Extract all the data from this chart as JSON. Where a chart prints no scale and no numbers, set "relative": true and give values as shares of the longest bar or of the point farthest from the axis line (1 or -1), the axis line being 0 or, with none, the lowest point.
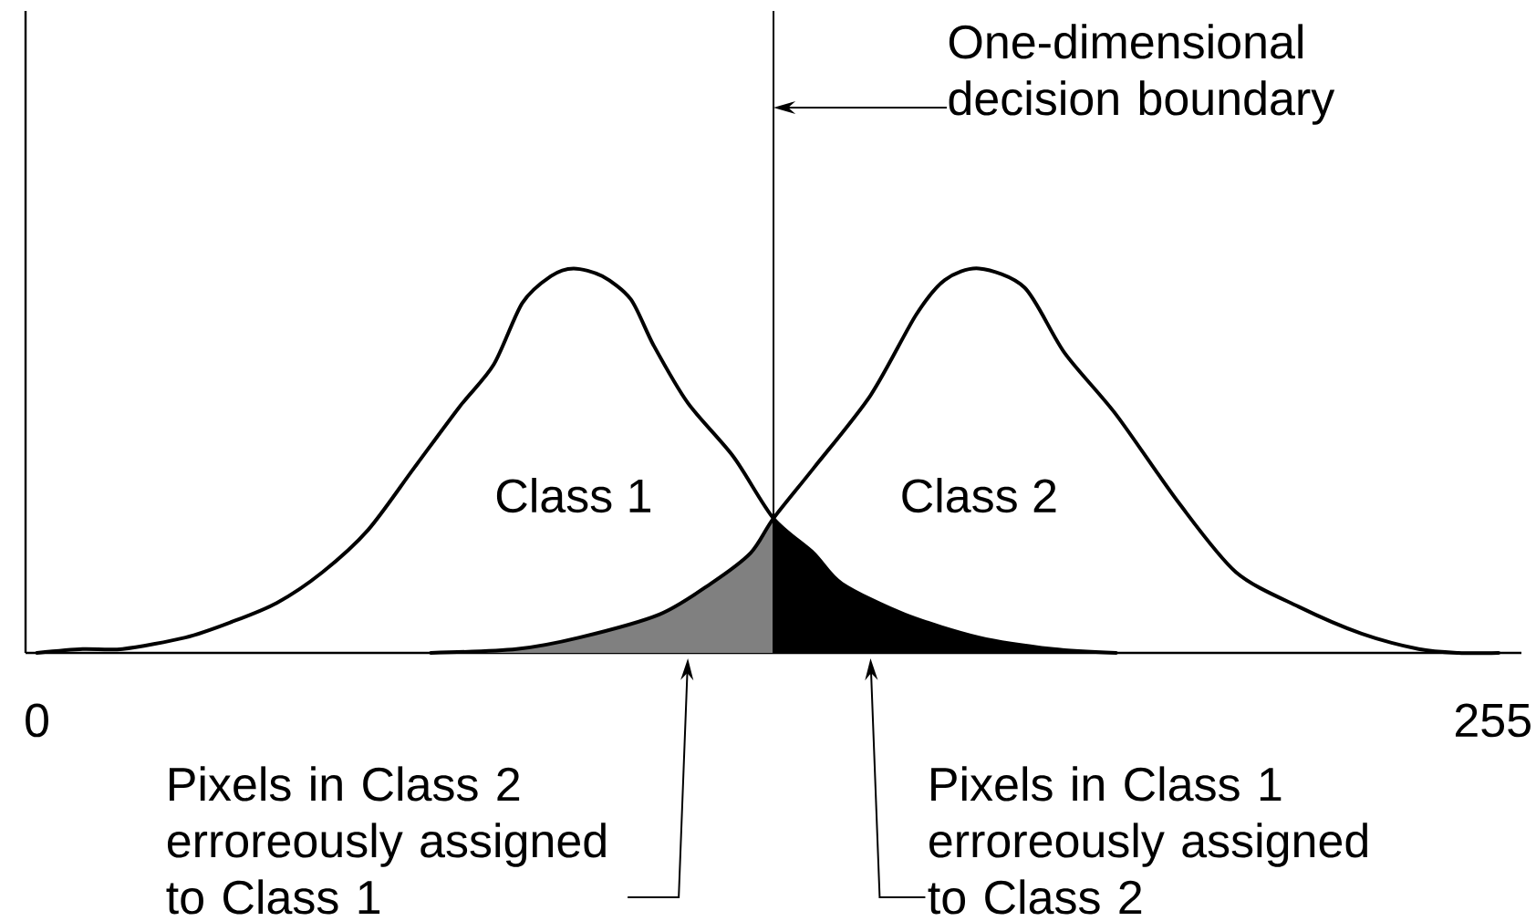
{
  "chart_data": {
    "type": "line",
    "relative": true,
    "xlim": [
      -2,
      260
    ],
    "xticks": [
      0,
      255
    ],
    "marker": "none",
    "series": [
      {
        "name": "Class 1",
        "color": "#000000",
        "x": [
          0,
          8,
          15,
          26,
          34,
          42,
          50,
          58,
          66,
          74,
          80,
          85,
          90,
          94,
          99,
          104,
          108,
          114,
          122,
          129,
          136,
          141,
          152,
          165,
          178,
          189
        ],
        "values": [
          0,
          0.01,
          0.01,
          0.04,
          0.08,
          0.13,
          0.21,
          0.32,
          0.48,
          0.64,
          0.75,
          0.91,
          0.98,
          1,
          0.98,
          0.92,
          0.8,
          0.65,
          0.51,
          0.35,
          0.26,
          0.18,
          0.1,
          0.04,
          0.01,
          0
        ]
      },
      {
        "name": "Class 2",
        "color": "#000000",
        "x": [
          69,
          84,
          95,
          109,
          118,
          125,
          129,
          136,
          146,
          154,
          159,
          165,
          173,
          180,
          189,
          200,
          210,
          221,
          232,
          242,
          249,
          256
        ],
        "values": [
          0,
          0.01,
          0.04,
          0.1,
          0.18,
          0.26,
          0.35,
          0.48,
          0.67,
          0.88,
          0.97,
          1,
          0.95,
          0.78,
          0.62,
          0.39,
          0.21,
          0.12,
          0.05,
          0.01,
          0,
          0
        ]
      },
      {
        "type": "area",
        "color": "#808080",
        "x": [
          69,
          84,
          95,
          109,
          118,
          125,
          129
        ],
        "values": [
          0,
          0.01,
          0.04,
          0.1,
          0.18,
          0.26,
          0.35
        ]
      },
      {
        "type": "area",
        "color": "#000000",
        "x": [
          129,
          136,
          141,
          152,
          165,
          178,
          189
        ],
        "values": [
          0.35,
          0.26,
          0.18,
          0.1,
          0.04,
          0.01,
          0
        ]
      }
    ],
    "ref_lines": [
      {
        "axis": "x",
        "value": 129,
        "label": "One-dimensional decision boundary",
        "color": "#000000"
      }
    ],
    "annotations": [
      {
        "text": "Pixels in Class 2 erroreously assigned to Class 1",
        "x": 114,
        "y": 0
      },
      {
        "text": "Pixels in Class 1 erroreously assigned to Class 2",
        "x": 146,
        "y": 0
      }
    ]
  }
}
